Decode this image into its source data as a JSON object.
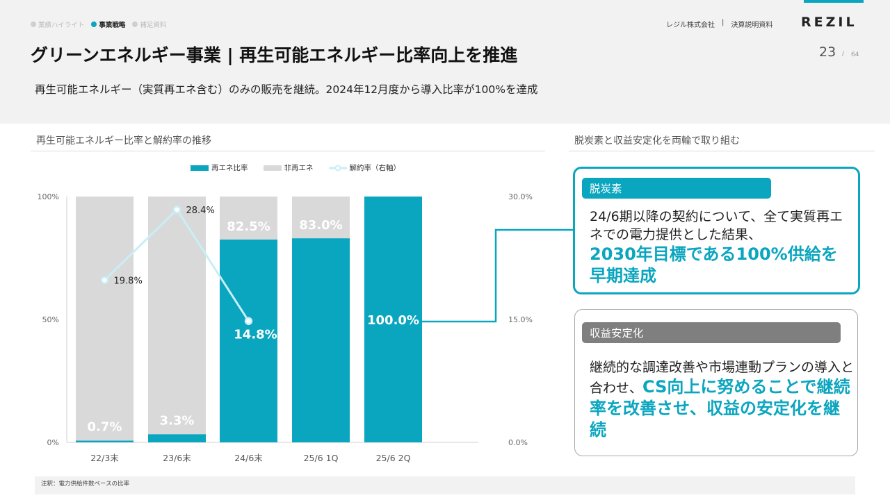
{
  "nav": {
    "items": [
      {
        "label": "業績ハイライト",
        "active": false
      },
      {
        "label": "事業戦略",
        "active": true
      },
      {
        "label": "補足資料",
        "active": false
      }
    ]
  },
  "header": {
    "company": "レジル株式会社",
    "separator": "|",
    "doc": "決算説明資料",
    "logo": "REZIL"
  },
  "page": {
    "number": "23",
    "separator": "/",
    "total": "64"
  },
  "title": "グリーンエネルギー事業 | 再生可能エネルギー比率向上を推進",
  "subtitle": "再生可能エネルギー（実質再エネ含む）のみの販売を継続。2024年12月度から導入比率が100%を達成",
  "left_section": "再生可能エネルギー比率と解約率の推移",
  "right_section": "脱炭素と収益安定化を両輪で取り組む",
  "colors": {
    "accent": "#0aa5bf",
    "nonrenew": "#d9d9d9",
    "churn": "#c9eef6"
  },
  "chart_data": {
    "type": "bar",
    "stacked": true,
    "categories": [
      "22/3末",
      "23/6末",
      "24/6末",
      "25/6 1Q",
      "25/6 2Q"
    ],
    "series": [
      {
        "name": "再エネ比率",
        "values": [
          0.7,
          3.3,
          82.5,
          83.0,
          100.0
        ],
        "labels": [
          "0.7%",
          "3.3%",
          "82.5%",
          "83.0%",
          "100.0%"
        ]
      },
      {
        "name": "非再エネ",
        "values": [
          99.3,
          96.7,
          17.5,
          17.0,
          0.0
        ]
      },
      {
        "name": "解約率（右軸）",
        "axis": "right",
        "values": [
          19.8,
          28.4,
          14.8,
          null,
          null
        ],
        "labels": [
          "19.8%",
          "28.4%",
          "14.8%",
          "",
          ""
        ]
      }
    ],
    "ylim": [
      0,
      100
    ],
    "y_ticks": [
      "0%",
      "50%",
      "100%"
    ],
    "y2lim": [
      0,
      30
    ],
    "y2_ticks": [
      "0.0%",
      "15.0%",
      "30.0%"
    ],
    "legend": "top"
  },
  "box1": {
    "label": "脱炭素",
    "text": "24/6期以降の契約について、全て実質再エネでの電力提供とした結果、",
    "highlight": "2030年目標である100%供給を早期達成"
  },
  "box2": {
    "label": "収益安定化",
    "text": "継続的な調達改善や市場連動プランの導入と合わせ、",
    "highlight": "CS向上に努めることで継続率を改善させ、収益の安定化を継続"
  },
  "footnote": "注釈：電力供給件数ベースの比率"
}
